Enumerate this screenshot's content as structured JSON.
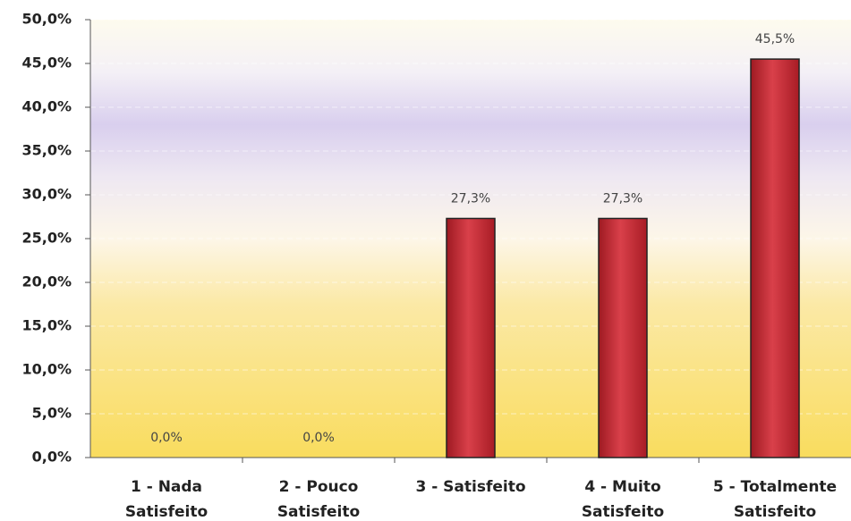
{
  "chart_data": {
    "type": "bar",
    "categories": [
      [
        "1 - Nada",
        "Satisfeito"
      ],
      [
        "2 - Pouco",
        "Satisfeito"
      ],
      [
        "3 - Satisfeito"
      ],
      [
        "4 - Muito",
        "Satisfeito"
      ],
      [
        "5 - Totalmente",
        "Satisfeito"
      ]
    ],
    "values": [
      0,
      0,
      27.3,
      27.3,
      45.5
    ],
    "value_labels": [
      "0,0%",
      "0,0%",
      "27,3%",
      "27,3%",
      "45,5%"
    ],
    "color": "#c8262f",
    "ylim": [
      0,
      50
    ],
    "yticks": [
      {
        "value": 0,
        "label": "0,0%"
      },
      {
        "value": 5,
        "label": "5,0%"
      },
      {
        "value": 10,
        "label": "10,0%"
      },
      {
        "value": 15,
        "label": "15,0%"
      },
      {
        "value": 20,
        "label": "20,0%"
      },
      {
        "value": 25,
        "label": "25,0%"
      },
      {
        "value": 30,
        "label": "30,0%"
      },
      {
        "value": 35,
        "label": "35,0%"
      },
      {
        "value": 40,
        "label": "40,0%"
      },
      {
        "value": 45,
        "label": "45,0%"
      },
      {
        "value": 50,
        "label": "50,0%"
      }
    ],
    "grid": true
  }
}
